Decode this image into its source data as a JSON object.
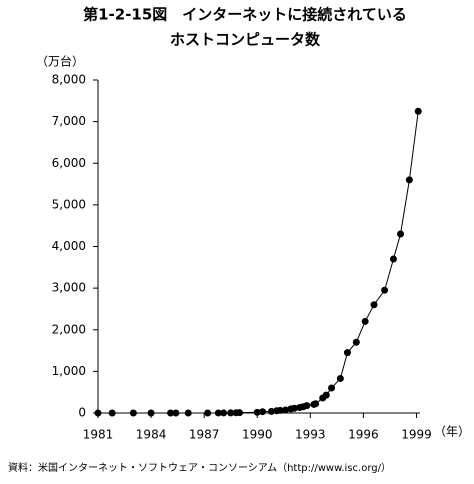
{
  "chart_data": {
    "type": "line",
    "title": "第1-2-15図　インターネットに接続されている",
    "subtitle": "ホストコンピュータ数",
    "y_label": "（万台）",
    "x_label": "（年）",
    "source": "資料：米国インターネット・ソフトウェア・コンソーシアム（http://www.isc.org/）",
    "x": [
      1981.0,
      1981.8,
      1983.0,
      1984.0,
      1985.1,
      1985.4,
      1986.1,
      1987.2,
      1987.8,
      1988.1,
      1988.5,
      1988.8,
      1989.0,
      1990.0,
      1990.3,
      1990.8,
      1991.1,
      1991.3,
      1991.6,
      1991.9,
      1992.1,
      1992.4,
      1992.6,
      1992.8,
      1993.2,
      1993.3,
      1993.7,
      1993.9,
      1994.2,
      1994.7,
      1995.1,
      1995.6,
      1996.1,
      1996.6,
      1997.2,
      1997.7,
      1998.1,
      1998.6,
      1999.1
    ],
    "series": [
      {
        "color": "#000000",
        "values": [
          0,
          0,
          0,
          0,
          0,
          0,
          0,
          0,
          1,
          2,
          3,
          5,
          8,
          16,
          31,
          38,
          54,
          62,
          73,
          99,
          114,
          131,
          149,
          178,
          206,
          222,
          360,
          430,
          600,
          830,
          1450,
          1700,
          2200,
          2600,
          2950,
          3700,
          4300,
          5600,
          7250
        ]
      }
    ],
    "xlim": [
      1981,
      1999.2
    ],
    "xticks": [
      1981,
      1984,
      1987,
      1990,
      1993,
      1996,
      1999
    ],
    "ylim": [
      0,
      8000
    ],
    "yticks": [
      0,
      {
        "value": 1000,
        "label": "1,000"
      },
      {
        "value": 2000,
        "label": "2,000"
      },
      {
        "value": 3000,
        "label": "3,000"
      },
      {
        "value": 4000,
        "label": "4,000"
      },
      {
        "value": 5000,
        "label": "5,000"
      },
      {
        "value": 6000,
        "label": "6,000"
      },
      {
        "value": 7000,
        "label": "7,000"
      },
      {
        "value": 8000,
        "label": "8,000"
      }
    ],
    "grid": false
  }
}
